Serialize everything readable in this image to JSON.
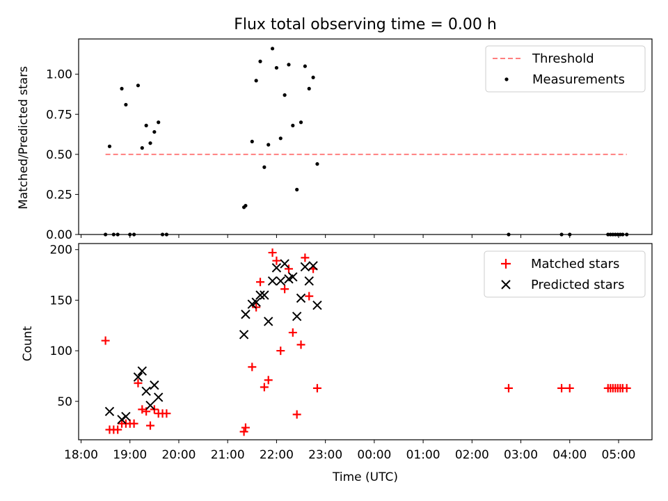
{
  "chart_data": [
    {
      "type": "scatter",
      "title": "Flux total observing time = 0.00 h",
      "ylabel": "Matched/Predicted stars",
      "xlabel": "",
      "ylim": [
        0,
        1.22
      ],
      "xlim": [
        "17:57",
        "05:41"
      ],
      "yticks": [
        0.0,
        0.25,
        0.5,
        0.75,
        1.0
      ],
      "ytick_labels": [
        "0.00",
        "0.25",
        "0.50",
        "0.75",
        "1.00"
      ],
      "legend_position": "top-right",
      "series": [
        {
          "name": "Threshold",
          "kind": "dashed-line",
          "color": "#ff7f7f",
          "x": [
            "18:30",
            "05:10"
          ],
          "y": [
            0.5,
            0.5
          ]
        },
        {
          "name": "Measurements",
          "kind": "dot",
          "color": "#000000",
          "x": [
            "18:30",
            "18:35",
            "18:40",
            "18:45",
            "18:50",
            "18:55",
            "19:00",
            "19:05",
            "19:10",
            "19:15",
            "19:20",
            "19:25",
            "19:30",
            "19:35",
            "19:40",
            "19:45",
            "21:20",
            "21:22",
            "21:30",
            "21:35",
            "21:40",
            "21:45",
            "21:50",
            "21:55",
            "22:00",
            "22:05",
            "22:10",
            "22:15",
            "22:20",
            "22:25",
            "22:30",
            "22:35",
            "22:40",
            "22:45",
            "22:50",
            "02:45",
            "03:50",
            "04:00",
            "04:47",
            "04:50",
            "04:53",
            "04:56",
            "04:59",
            "05:02",
            "05:05",
            "05:10"
          ],
          "y": [
            0.0,
            0.55,
            0.0,
            0.0,
            0.91,
            0.81,
            0.0,
            0.0,
            0.93,
            0.54,
            0.68,
            0.57,
            0.64,
            0.7,
            0.0,
            0.0,
            0.17,
            0.18,
            0.58,
            0.96,
            1.08,
            0.42,
            0.56,
            1.16,
            1.04,
            0.6,
            0.87,
            1.06,
            0.68,
            0.28,
            0.7,
            1.05,
            0.91,
            0.98,
            0.44,
            0.0,
            0.0,
            0.0,
            0.0,
            0.0,
            0.0,
            0.0,
            0.0,
            0.0,
            0.0,
            0.0
          ]
        }
      ]
    },
    {
      "type": "scatter",
      "title": "",
      "ylabel": "Count",
      "xlabel": "Time (UTC)",
      "ylim": [
        12,
        206
      ],
      "xlim": [
        "17:57",
        "05:41"
      ],
      "yticks": [
        50,
        100,
        150,
        200
      ],
      "ytick_labels": [
        "50",
        "100",
        "150",
        "200"
      ],
      "xticks": [
        "18:00",
        "19:00",
        "20:00",
        "21:00",
        "22:00",
        "23:00",
        "00:00",
        "01:00",
        "02:00",
        "03:00",
        "04:00",
        "05:00"
      ],
      "legend_position": "top-right",
      "series": [
        {
          "name": "Matched stars",
          "kind": "plus",
          "color": "#ff0000",
          "x": [
            "18:30",
            "18:35",
            "18:40",
            "18:45",
            "18:50",
            "18:55",
            "19:00",
            "19:05",
            "19:10",
            "19:15",
            "19:20",
            "19:25",
            "19:30",
            "19:35",
            "19:40",
            "19:45",
            "21:20",
            "21:22",
            "21:30",
            "21:35",
            "21:40",
            "21:45",
            "21:50",
            "21:55",
            "22:00",
            "22:05",
            "22:10",
            "22:15",
            "22:20",
            "22:25",
            "22:30",
            "22:35",
            "22:40",
            "22:45",
            "22:50",
            "02:45",
            "03:50",
            "04:00",
            "04:47",
            "04:50",
            "04:53",
            "04:56",
            "04:59",
            "05:02",
            "05:05",
            "05:10"
          ],
          "y": [
            110,
            22,
            22,
            22,
            28,
            28,
            28,
            28,
            68,
            42,
            40,
            26,
            42,
            38,
            38,
            38,
            20,
            24,
            84,
            143,
            168,
            64,
            71,
            197,
            189,
            100,
            161,
            181,
            118,
            37,
            106,
            192,
            154,
            181,
            63,
            63,
            63,
            63,
            63,
            63,
            63,
            63,
            63,
            63,
            63,
            63
          ]
        },
        {
          "name": "Predicted stars",
          "kind": "x",
          "color": "#000000",
          "x": [
            "18:35",
            "18:50",
            "18:55",
            "19:10",
            "19:15",
            "19:20",
            "19:25",
            "19:30",
            "19:35",
            "21:20",
            "21:22",
            "21:30",
            "21:35",
            "21:40",
            "21:45",
            "21:50",
            "21:55",
            "22:00",
            "22:05",
            "22:10",
            "22:15",
            "22:20",
            "22:25",
            "22:30",
            "22:35",
            "22:40",
            "22:45",
            "22:50"
          ],
          "y": [
            40,
            32,
            35,
            74,
            80,
            60,
            46,
            66,
            54,
            116,
            136,
            146,
            148,
            155,
            155,
            129,
            169,
            182,
            169,
            186,
            171,
            173,
            134,
            152,
            183,
            169,
            184,
            145
          ]
        }
      ]
    }
  ]
}
